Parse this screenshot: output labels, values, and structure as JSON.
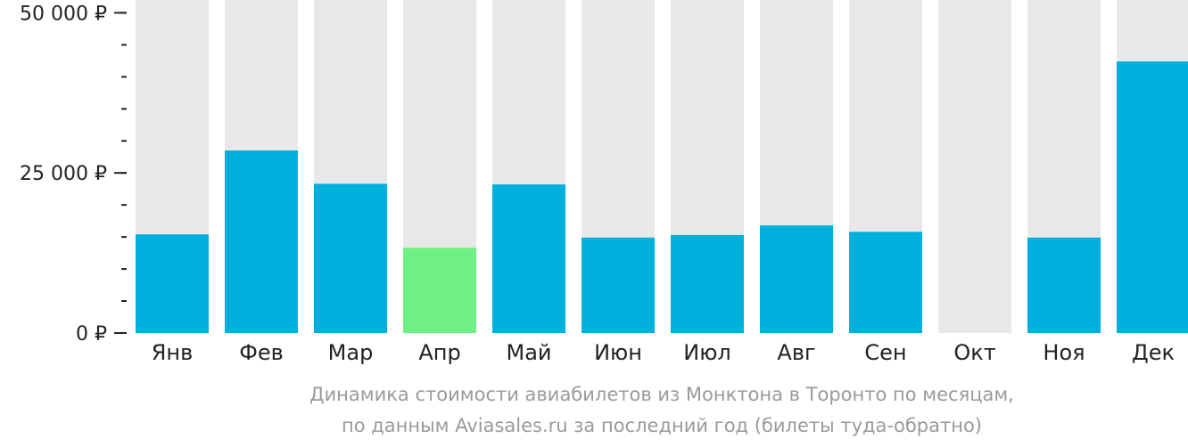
{
  "chart_data": {
    "type": "bar",
    "title": "Динамика стоимости авиабилетов из Монктона в Торонто по месяцам,",
    "subtitle": "по данным Aviasales.ru за последний год (билеты туда-обратно)",
    "categories": [
      "Янв",
      "Фев",
      "Мар",
      "Апр",
      "Май",
      "Июн",
      "Июл",
      "Авг",
      "Сен",
      "Окт",
      "Ноя",
      "Дек"
    ],
    "values": [
      15400,
      28500,
      23300,
      13300,
      23200,
      14900,
      15300,
      16800,
      15800,
      null,
      14900,
      42400
    ],
    "ylim": [
      0,
      52000
    ],
    "y_ticks": [
      {
        "value": 50000,
        "label": "50 000 ₽"
      },
      {
        "value": 25000,
        "label": "25 000 ₽"
      },
      {
        "value": 0,
        "label": "0 ₽"
      }
    ],
    "minor_tick_step": 5000,
    "highlight_index": 3,
    "grid": false,
    "colors": {
      "bar": "#00b0dc",
      "highlight": "#6ef084",
      "background_bar": "#e8e8e8",
      "axis": "#222222",
      "caption": "#9a9a9a"
    }
  }
}
